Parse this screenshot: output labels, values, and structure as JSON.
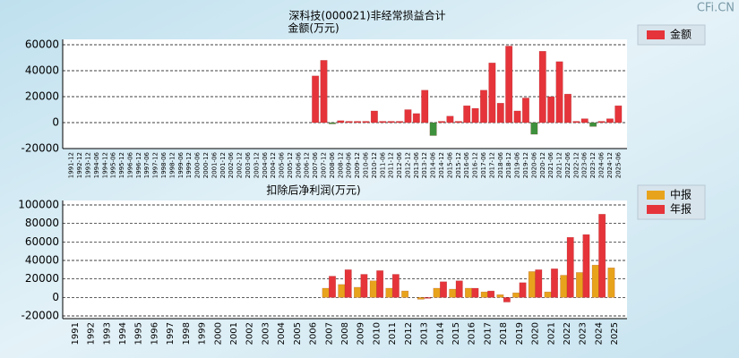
{
  "watermark": "CFi.CN",
  "chart_data": [
    {
      "type": "bar",
      "title": "深科技(000021)非经常损益合计",
      "subtitle": "金额(万元)",
      "categories": [
        "1991-12",
        "1992-12",
        "1993-12",
        "1994-06",
        "1994-12",
        "1995-06",
        "1995-12",
        "1996-06",
        "1996-12",
        "1997-06",
        "1997-12",
        "1998-06",
        "1998-12",
        "1999-06",
        "1999-12",
        "2000-06",
        "2000-12",
        "2001-06",
        "2001-12",
        "2002-06",
        "2002-12",
        "2003-06",
        "2003-12",
        "2004-06",
        "2004-12",
        "2005-06",
        "2005-12",
        "2006-06",
        "2006-12",
        "2007-06",
        "2007-12",
        "2008-06",
        "2008-12",
        "2009-06",
        "2009-12",
        "2010-06",
        "2010-12",
        "2011-06",
        "2011-12",
        "2012-06",
        "2012-12",
        "2013-06",
        "2013-12",
        "2014-06",
        "2014-12",
        "2015-06",
        "2015-12",
        "2016-06",
        "2016-12",
        "2017-06",
        "2017-12",
        "2018-06",
        "2018-12",
        "2019-06",
        "2019-12",
        "2020-06",
        "2020-12",
        "2021-06",
        "2021-12",
        "2022-06",
        "2022-12",
        "2023-06",
        "2023-12",
        "2024-06",
        "2024-12",
        "2025-06"
      ],
      "series": [
        {
          "name": "金额",
          "color": "#e5343a",
          "negative_color": "#3d913d",
          "values": [
            null,
            null,
            null,
            null,
            null,
            null,
            null,
            null,
            null,
            null,
            null,
            null,
            null,
            null,
            null,
            null,
            null,
            null,
            null,
            null,
            null,
            null,
            null,
            null,
            null,
            null,
            null,
            null,
            null,
            36000,
            48000,
            -1000,
            1500,
            1000,
            1000,
            1000,
            9000,
            1000,
            1000,
            1000,
            10000,
            7000,
            25000,
            -10000,
            1000,
            5000,
            1000,
            13000,
            11000,
            25000,
            46000,
            15000,
            59000,
            9000,
            19000,
            -9000,
            55000,
            20000,
            47000,
            22000,
            1000,
            3000,
            -3000,
            1000,
            3000,
            13000
          ]
        }
      ],
      "ylim": [
        -20000,
        60000
      ],
      "yticks": [
        -20000,
        0,
        20000,
        40000,
        60000
      ],
      "grid": true
    },
    {
      "type": "grouped_bar",
      "title": "扣除后净利润(万元)",
      "categories": [
        "1991",
        "1992",
        "1993",
        "1994",
        "1995",
        "1996",
        "1997",
        "1998",
        "1999",
        "2000",
        "2001",
        "2002",
        "2003",
        "2004",
        "2005",
        "2006",
        "2007",
        "2008",
        "2009",
        "2010",
        "2011",
        "2012",
        "2013",
        "2014",
        "2015",
        "2016",
        "2017",
        "2018",
        "2019",
        "2020",
        "2021",
        "2022",
        "2023",
        "2024",
        "2025"
      ],
      "series": [
        {
          "name": "中报",
          "color": "#e8a31c",
          "values": [
            null,
            null,
            null,
            null,
            null,
            null,
            null,
            null,
            null,
            null,
            null,
            null,
            null,
            null,
            null,
            null,
            10000,
            14000,
            11000,
            18000,
            10000,
            7000,
            -2000,
            10000,
            9000,
            10000,
            6000,
            3000,
            5000,
            28000,
            6000,
            24000,
            27000,
            35000,
            32000
          ]
        },
        {
          "name": "年报",
          "color": "#e5343a",
          "values": [
            null,
            null,
            null,
            null,
            null,
            null,
            null,
            null,
            null,
            null,
            null,
            null,
            null,
            null,
            null,
            null,
            23000,
            30000,
            25000,
            29000,
            25000,
            null,
            -1000,
            17000,
            18000,
            10000,
            7000,
            -5000,
            16000,
            30000,
            31000,
            65000,
            68000,
            90000,
            null
          ]
        }
      ],
      "ylim": [
        -20000,
        100000
      ],
      "yticks": [
        -20000,
        0,
        20000,
        40000,
        60000,
        80000,
        100000
      ],
      "grid": true
    }
  ]
}
